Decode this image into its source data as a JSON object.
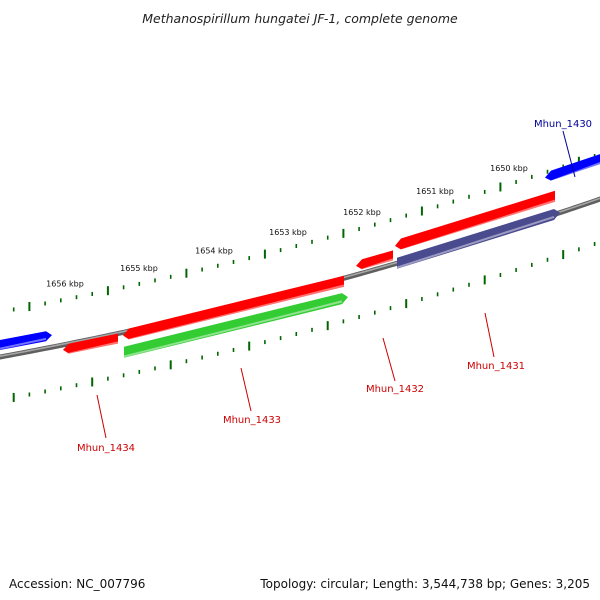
{
  "title": "Methanospirillum hungatei JF-1, complete genome",
  "footer": {
    "accession": "Accession: NC_007796",
    "summary": "Topology: circular; Length: 3,544,738 bp; Genes: 3,205"
  },
  "colors": {
    "forward_gene": "#ff0000",
    "reverse_gene_green": "#33cc33",
    "reverse_gene_navy": "#4a4a8f",
    "neighbor_gene": "#0000ff",
    "label_red": "#cc0000",
    "label_blue": "#000099",
    "backbone": "#808080",
    "tick": "#006600"
  },
  "scale": {
    "unit": "kbp",
    "labels": [
      "1650 kbp",
      "1651 kbp",
      "1652 kbp",
      "1653 kbp",
      "1654 kbp",
      "1655 kbp",
      "1656 kbp"
    ]
  },
  "genes": [
    {
      "id": "Mhun_1430",
      "color_key": "neighbor_gene",
      "label_color_key": "label_blue"
    },
    {
      "id": "Mhun_1431",
      "color_key": "reverse_gene_navy",
      "label_color_key": "label_red"
    },
    {
      "id": "Mhun_1432",
      "color_key": "forward_gene",
      "label_color_key": "label_red"
    },
    {
      "id": "Mhun_1433",
      "color_key": "reverse_gene_green",
      "label_color_key": "label_red"
    },
    {
      "id": "Mhun_1434",
      "color_key": "forward_gene",
      "label_color_key": "label_red"
    }
  ]
}
